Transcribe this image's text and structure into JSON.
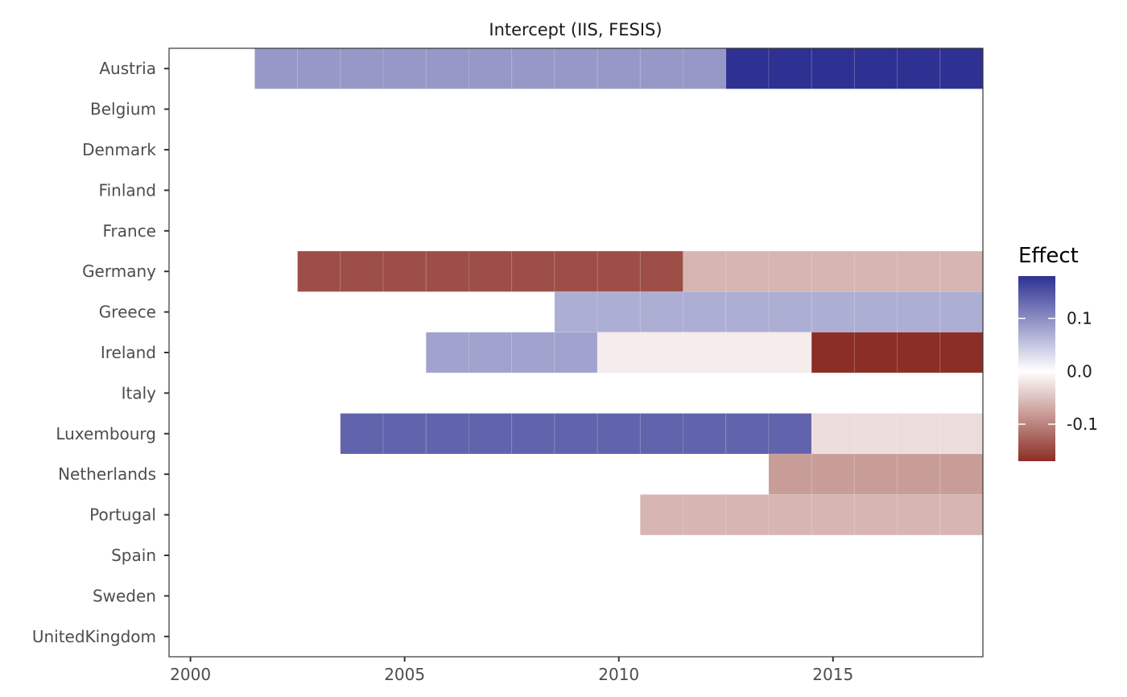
{
  "chart_data": {
    "type": "heatmap",
    "title": "Intercept (IIS, FESIS)",
    "xlabel": "",
    "ylabel": "",
    "xlim": [
      1999.5,
      2018.5
    ],
    "x_ticks": [
      2000,
      2005,
      2010,
      2015
    ],
    "x_tick_labels": [
      "2000",
      "2005",
      "2010",
      "2015"
    ],
    "categories": [
      "Austria",
      "Belgium",
      "Denmark",
      "Finland",
      "France",
      "Germany",
      "Greece",
      "Ireland",
      "Italy",
      "Luxembourg",
      "Netherlands",
      "Portugal",
      "Spain",
      "Sweden",
      "UnitedKingdom"
    ],
    "segments": [
      {
        "country": "Austria",
        "start": 2002,
        "end": 2012,
        "value": 0.08
      },
      {
        "country": "Austria",
        "start": 2013,
        "end": 2018,
        "value": 0.18
      },
      {
        "country": "Germany",
        "start": 2003,
        "end": 2011,
        "value": -0.14
      },
      {
        "country": "Germany",
        "start": 2012,
        "end": 2018,
        "value": -0.05
      },
      {
        "country": "Greece",
        "start": 2009,
        "end": 2018,
        "value": 0.06
      },
      {
        "country": "Ireland",
        "start": 2006,
        "end": 2009,
        "value": 0.07
      },
      {
        "country": "Ireland",
        "start": 2010,
        "end": 2014,
        "value": -0.01
      },
      {
        "country": "Ireland",
        "start": 2015,
        "end": 2018,
        "value": -0.17
      },
      {
        "country": "Luxembourg",
        "start": 2004,
        "end": 2014,
        "value": 0.13
      },
      {
        "country": "Luxembourg",
        "start": 2015,
        "end": 2018,
        "value": -0.02
      },
      {
        "country": "Netherlands",
        "start": 2014,
        "end": 2018,
        "value": -0.07
      },
      {
        "country": "Portugal",
        "start": 2011,
        "end": 2018,
        "value": -0.05
      }
    ],
    "legend": {
      "title": "Effect",
      "placement": "right",
      "range": [
        -0.17,
        0.18
      ],
      "ticks": [
        0.1,
        0.0,
        -0.1
      ],
      "tick_labels": [
        "0.1",
        "0.0",
        "-0.1"
      ],
      "low_color": "#8b2e25",
      "mid_color": "#ffffff",
      "high_color": "#2e3192"
    },
    "grid": false,
    "panel_border_color": "#333333"
  }
}
